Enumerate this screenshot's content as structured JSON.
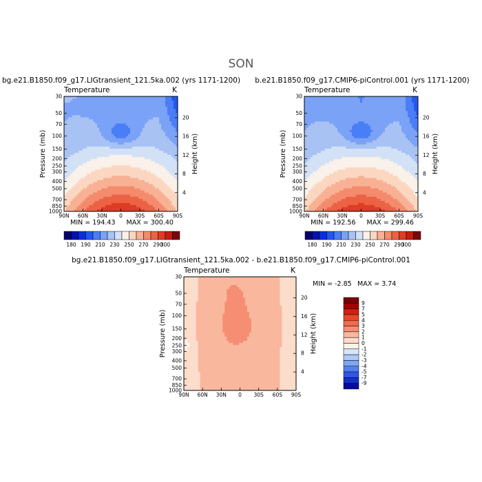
{
  "page_title": "SON",
  "chart_data": [
    {
      "type": "heatmap",
      "title": "bg.e21.B1850.f09_g17.LIGtransient_121.5ka.002 (yrs 1171-1200)",
      "subtitle_left": "Temperature",
      "units": "K",
      "xlabel": "",
      "ylabel": "Pressure (mb)",
      "ylabel_right": "Height (km)",
      "x_ticks": [
        "90N",
        "60N",
        "30N",
        "0",
        "30S",
        "60S",
        "90S"
      ],
      "y_ticks": [
        "30",
        "50",
        "70",
        "100",
        "150",
        "200",
        "250",
        "300",
        "400",
        "500",
        "700",
        "850",
        "1000"
      ],
      "y_right_ticks": [
        "20",
        "16",
        "12",
        "8",
        "4"
      ],
      "min_text": "MIN = 194.43",
      "max_text": "MAX = 300.40",
      "min": 194.43,
      "max": 300.4,
      "colorbar": {
        "orientation": "horizontal",
        "levels": [
          180,
          190,
          200,
          210,
          220,
          230,
          240,
          250,
          260,
          270,
          280,
          290,
          300
        ],
        "labels": [
          "180",
          "190",
          "210",
          "230",
          "250",
          "270",
          "290",
          "300"
        ]
      }
    },
    {
      "type": "heatmap",
      "title": "b.e21.B1850.f09_g17.CMIP6-piControl.001 (yrs 1171-1200)",
      "subtitle_left": "Temperature",
      "units": "K",
      "xlabel": "",
      "ylabel": "Pressure (mb)",
      "ylabel_right": "Height (km)",
      "x_ticks": [
        "90N",
        "60N",
        "30N",
        "0",
        "30S",
        "60S",
        "90S"
      ],
      "y_ticks": [
        "30",
        "50",
        "70",
        "100",
        "150",
        "200",
        "250",
        "300",
        "400",
        "500",
        "700",
        "850",
        "1000"
      ],
      "y_right_ticks": [
        "20",
        "16",
        "12",
        "8",
        "4"
      ],
      "min_text": "MIN = 192.56",
      "max_text": "MAX = 299.46",
      "min": 192.56,
      "max": 299.46,
      "colorbar": {
        "orientation": "horizontal",
        "levels": [
          180,
          190,
          200,
          210,
          220,
          230,
          240,
          250,
          260,
          270,
          280,
          290,
          300
        ],
        "labels": [
          "180",
          "190",
          "210",
          "230",
          "250",
          "270",
          "290",
          "300"
        ]
      }
    },
    {
      "type": "heatmap",
      "title": "bg.e21.B1850.f09_g17.LIGtransient_121.5ka.002 - b.e21.B1850.f09_g17.CMIP6-piControl.001",
      "subtitle_left": "Temperature",
      "units": "K",
      "xlabel": "",
      "ylabel": "Pressure (mb)",
      "ylabel_right": "Height (km)",
      "x_ticks": [
        "90N",
        "60N",
        "30N",
        "0",
        "30S",
        "60S",
        "90S"
      ],
      "y_ticks": [
        "30",
        "50",
        "70",
        "100",
        "150",
        "200",
        "250",
        "300",
        "400",
        "500",
        "700",
        "850",
        "1000"
      ],
      "y_right_ticks": [
        "20",
        "16",
        "12",
        "8",
        "4"
      ],
      "min_text": "MIN = -2.85",
      "max_text": "MAX = 3.74",
      "min": -2.85,
      "max": 3.74,
      "colorbar": {
        "orientation": "vertical",
        "levels": [
          -9,
          -7,
          -5,
          -4,
          -3,
          -2,
          -1,
          0,
          1,
          2,
          3,
          4,
          5,
          7,
          9
        ],
        "labels": [
          "9",
          "7",
          "5",
          "4",
          "3",
          "2",
          "1",
          "0",
          "-1",
          "-2",
          "-3",
          "-4",
          "-5",
          "-7",
          "-9"
        ]
      }
    }
  ],
  "colors": {
    "abs_scale": [
      "#08006b",
      "#0012b0",
      "#0a2fe0",
      "#2457f2",
      "#4a7ef6",
      "#7aa2f6",
      "#a8c2f4",
      "#d3e1f7",
      "#f9f1ea",
      "#fbd7c2",
      "#f8b194",
      "#f48b6c",
      "#ec6245",
      "#de3c24",
      "#c51d0f",
      "#7a0a0a"
    ],
    "diff_scale": [
      "#7a0000",
      "#a40000",
      "#d2200f",
      "#e8452a",
      "#f06a4d",
      "#f58e72",
      "#f9b79d",
      "#fcdccb",
      "#fdf2e6",
      "#d8e6fb",
      "#adc9f7",
      "#7ea6f3",
      "#547ff0",
      "#2d56e8",
      "#1530c8",
      "#080a9c"
    ],
    "frame": "#000000"
  }
}
